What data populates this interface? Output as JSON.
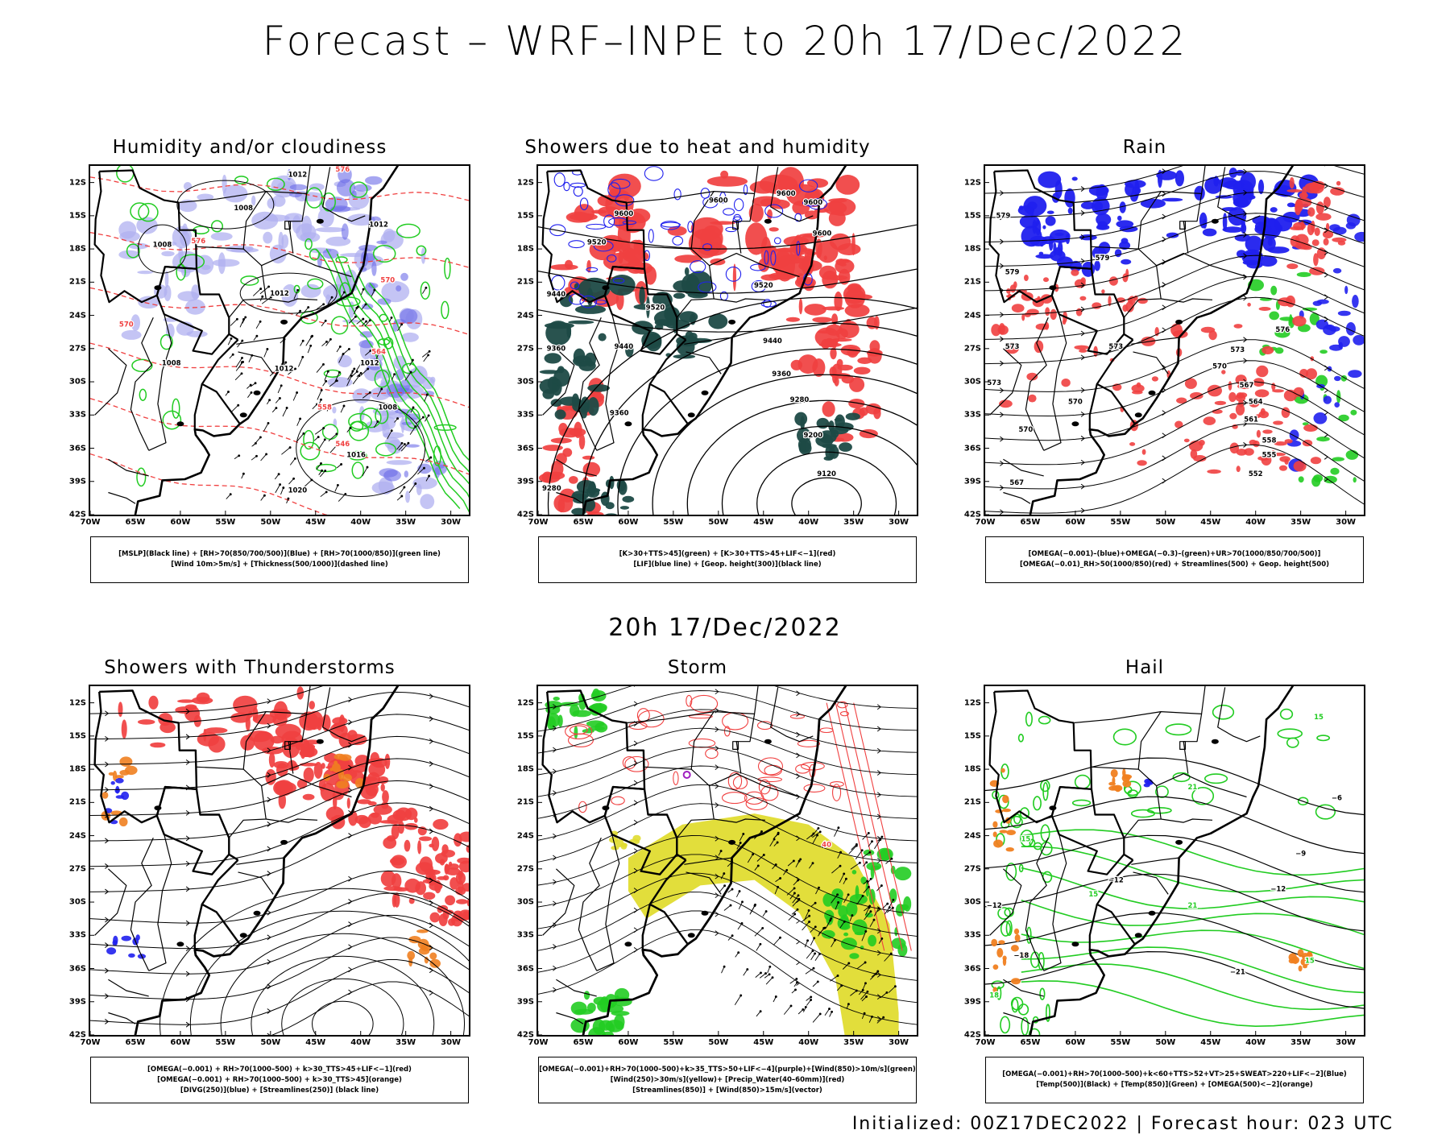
{
  "main_title": "Forecast – WRF–INPE to 20h 17/Dec/2022",
  "mid_title": "20h 17/Dec/2022",
  "footer": "Initialized: 00Z17DEC2022 | Forecast hour: 023 UTC",
  "axes": {
    "lat_labels": [
      "12S",
      "15S",
      "18S",
      "21S",
      "24S",
      "27S",
      "30S",
      "33S",
      "36S",
      "39S",
      "42S"
    ],
    "lon_labels": [
      "70W",
      "65W",
      "60W",
      "55W",
      "50W",
      "45W",
      "40W",
      "35W",
      "30W"
    ]
  },
  "colors": {
    "red": "#f04040",
    "green": "#22cc22",
    "blue": "#2020ee",
    "lavender": "#b0b0f0",
    "dark_teal": "#1e4a46",
    "yellow": "#e0dc30",
    "orange": "#f08020",
    "purple": "#a020c0"
  },
  "panels": [
    {
      "title": "Humidity and/or cloudiness",
      "legend": [
        "[MSLP](Black line) + [RH>70(850/700/500)](Blue) + [RH>70(1000/850)](green line)",
        "[Wind 10m>5m/s] + [Thickness(500/1000)](dashed line)"
      ],
      "contour_labels": [
        {
          "text": "1012",
          "lon": -47,
          "lat": -11.5,
          "color": "#000000"
        },
        {
          "text": "576",
          "lon": -42,
          "lat": -11,
          "color": "#f04040"
        },
        {
          "text": "1008",
          "lon": -53,
          "lat": -14.5,
          "color": "#000000"
        },
        {
          "text": "1008",
          "lon": -62,
          "lat": -17.8,
          "color": "#000000"
        },
        {
          "text": "576",
          "lon": -58,
          "lat": -17.5,
          "color": "#f04040"
        },
        {
          "text": "1012",
          "lon": -38,
          "lat": -16,
          "color": "#000000"
        },
        {
          "text": "570",
          "lon": -37,
          "lat": -21,
          "color": "#f04040"
        },
        {
          "text": "1012",
          "lon": -49,
          "lat": -22.2,
          "color": "#000000"
        },
        {
          "text": "570",
          "lon": -66,
          "lat": -25,
          "color": "#f04040"
        },
        {
          "text": "1008",
          "lon": -61,
          "lat": -28.5,
          "color": "#000000"
        },
        {
          "text": "564",
          "lon": -38,
          "lat": -27.5,
          "color": "#f04040"
        },
        {
          "text": "1012",
          "lon": -48.5,
          "lat": -29,
          "color": "#000000"
        },
        {
          "text": "1012",
          "lon": -39,
          "lat": -28.5,
          "color": "#000000"
        },
        {
          "text": "558",
          "lon": -44,
          "lat": -32.5,
          "color": "#f04040"
        },
        {
          "text": "1008",
          "lon": -37,
          "lat": -32.5,
          "color": "#000000"
        },
        {
          "text": "546",
          "lon": -42,
          "lat": -35.8,
          "color": "#f04040"
        },
        {
          "text": "1016",
          "lon": -40.5,
          "lat": -36.8,
          "color": "#000000"
        },
        {
          "text": "1020",
          "lon": -47,
          "lat": -40,
          "color": "#000000"
        }
      ]
    },
    {
      "title": "Showers due to heat and humidity",
      "legend": [
        "[K>30+TTS>45](green) + [K>30+TTS>45+LIF<−1](red)",
        "[LIF](blue line) + [Geop. height(300)](black line)"
      ],
      "contour_labels": [
        {
          "text": "9600",
          "lon": -50,
          "lat": -13.8,
          "color": "#000000"
        },
        {
          "text": "9600",
          "lon": -42.5,
          "lat": -13.2,
          "color": "#000000"
        },
        {
          "text": "9600",
          "lon": -39.5,
          "lat": -14,
          "color": "#000000"
        },
        {
          "text": "9600",
          "lon": -60.5,
          "lat": -15,
          "color": "#000000"
        },
        {
          "text": "9600",
          "lon": -38.5,
          "lat": -16.8,
          "color": "#000000"
        },
        {
          "text": "9520",
          "lon": -63.5,
          "lat": -17.6,
          "color": "#000000"
        },
        {
          "text": "9520",
          "lon": -45,
          "lat": -21.5,
          "color": "#000000"
        },
        {
          "text": "9440",
          "lon": -68,
          "lat": -22.3,
          "color": "#000000"
        },
        {
          "text": "9520",
          "lon": -57,
          "lat": -23.5,
          "color": "#000000"
        },
        {
          "text": "9440",
          "lon": -60.5,
          "lat": -27,
          "color": "#000000"
        },
        {
          "text": "9440",
          "lon": -44,
          "lat": -26.5,
          "color": "#000000"
        },
        {
          "text": "9360",
          "lon": -68,
          "lat": -27.2,
          "color": "#000000"
        },
        {
          "text": "9360",
          "lon": -43,
          "lat": -29.5,
          "color": "#000000"
        },
        {
          "text": "9280",
          "lon": -41,
          "lat": -31.8,
          "color": "#000000"
        },
        {
          "text": "9360",
          "lon": -61,
          "lat": -33,
          "color": "#000000"
        },
        {
          "text": "9200",
          "lon": -39.5,
          "lat": -35,
          "color": "#000000"
        },
        {
          "text": "9120",
          "lon": -38,
          "lat": -38.5,
          "color": "#000000"
        },
        {
          "text": "9280",
          "lon": -68.5,
          "lat": -39.8,
          "color": "#000000"
        }
      ]
    },
    {
      "title": "Rain",
      "legend": [
        "[OMEGA(−0.001)–(blue)+OMEGA(−0.3)–(green)+UR>70(1000/850/700/500)]",
        "[OMEGA(−0.01)_RH>50(1000/850)(red) + Streamlines(500) + Geop. height(500)"
      ],
      "contour_labels": [
        {
          "text": "579",
          "lon": -68,
          "lat": -15.2,
          "color": "#000000"
        },
        {
          "text": "579",
          "lon": -67,
          "lat": -20.3,
          "color": "#000000"
        },
        {
          "text": "579",
          "lon": -57,
          "lat": -19,
          "color": "#000000"
        },
        {
          "text": "576",
          "lon": -37,
          "lat": -25.5,
          "color": "#000000"
        },
        {
          "text": "573",
          "lon": -67,
          "lat": -27,
          "color": "#000000"
        },
        {
          "text": "573",
          "lon": -55.5,
          "lat": -27,
          "color": "#000000"
        },
        {
          "text": "573",
          "lon": -42,
          "lat": -27.3,
          "color": "#000000"
        },
        {
          "text": "570",
          "lon": -44,
          "lat": -28.8,
          "color": "#000000"
        },
        {
          "text": "573",
          "lon": -69,
          "lat": -30.3,
          "color": "#000000"
        },
        {
          "text": "567",
          "lon": -41,
          "lat": -30.5,
          "color": "#000000"
        },
        {
          "text": "570",
          "lon": -60,
          "lat": -32,
          "color": "#000000"
        },
        {
          "text": "564",
          "lon": -40,
          "lat": -32,
          "color": "#000000"
        },
        {
          "text": "561",
          "lon": -40.5,
          "lat": -33.6,
          "color": "#000000"
        },
        {
          "text": "570",
          "lon": -65.5,
          "lat": -34.5,
          "color": "#000000"
        },
        {
          "text": "558",
          "lon": -38.5,
          "lat": -35.5,
          "color": "#000000"
        },
        {
          "text": "555",
          "lon": -38.5,
          "lat": -36.8,
          "color": "#000000"
        },
        {
          "text": "567",
          "lon": -66.5,
          "lat": -39.3,
          "color": "#000000"
        },
        {
          "text": "552",
          "lon": -40,
          "lat": -38.5,
          "color": "#000000"
        }
      ]
    },
    {
      "title": "Showers with Thunderstorms",
      "legend": [
        "[OMEGA(−0.001) + RH>70(1000–500) + k>30_TTS>45+LIF<−1](red)",
        "[OMEGA(−0.001) + RH>70(1000–500) + k>30_TTS>45](orange)",
        "[DIVG(250)](blue) + [Streamlines(250)] (black line)"
      ],
      "contour_labels": []
    },
    {
      "title": "Storm",
      "legend": [
        "[OMEGA(−0.001)+RH>70(1000–500)+k>35_TTS>50+LIF<−4](purple)+[Wind(850)>10m/s](green)",
        "[Wind(250)>30m/s](yellow)+ [Precip_Water(40–60mm)](red)",
        "[Streamlines(850)] + [Wind(850)>15m/s](vector)"
      ],
      "contour_labels": [
        {
          "text": "40",
          "lon": -38,
          "lat": -25,
          "color": "#f04040"
        }
      ]
    },
    {
      "title": "Hail",
      "legend": [
        "[OMEGA(−0.001)+RH>70(1000–500)+k<60+TTS>52+VT>25+SWEAT>220+LIF<−2](Blue)",
        "[Temp(500)](Black) + [Temp(850)](Green) + [OMEGA(500)<−2](orange)"
      ],
      "contour_labels": [
        {
          "text": "15",
          "lon": -33,
          "lat": -13.5,
          "color": "#22cc22"
        },
        {
          "text": "21",
          "lon": -47,
          "lat": -19.8,
          "color": "#22cc22"
        },
        {
          "text": "−6",
          "lon": -31,
          "lat": -20.8,
          "color": "#000000"
        },
        {
          "text": "15",
          "lon": -65.5,
          "lat": -24.5,
          "color": "#22cc22"
        },
        {
          "text": "−9",
          "lon": -35,
          "lat": -25.8,
          "color": "#000000"
        },
        {
          "text": "15",
          "lon": -58,
          "lat": -29.5,
          "color": "#22cc22"
        },
        {
          "text": "−12",
          "lon": -55.5,
          "lat": -28.2,
          "color": "#000000"
        },
        {
          "text": "−12",
          "lon": -37.5,
          "lat": -29,
          "color": "#000000"
        },
        {
          "text": "−12",
          "lon": -69,
          "lat": -30.5,
          "color": "#000000"
        },
        {
          "text": "21",
          "lon": -47,
          "lat": -30.5,
          "color": "#22cc22"
        },
        {
          "text": "−18",
          "lon": -66,
          "lat": -35,
          "color": "#000000"
        },
        {
          "text": "15",
          "lon": -34,
          "lat": -35.5,
          "color": "#22cc22"
        },
        {
          "text": "−21",
          "lon": -42,
          "lat": -36.5,
          "color": "#000000"
        },
        {
          "text": "18",
          "lon": -69,
          "lat": -38.6,
          "color": "#22cc22"
        }
      ]
    }
  ]
}
